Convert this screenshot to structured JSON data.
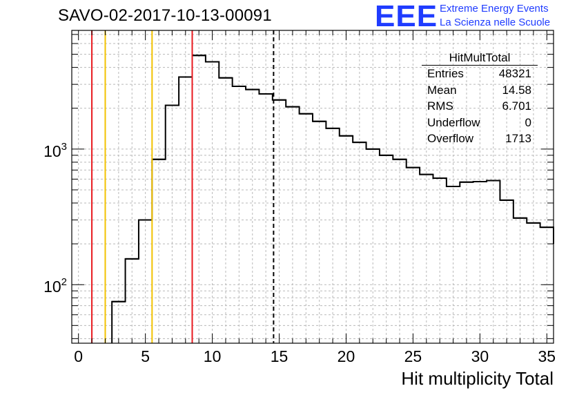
{
  "header": {
    "title": "SAVO-02-2017-10-13-00091"
  },
  "logo": {
    "mark": "EEE",
    "line1": "Extreme Energy Events",
    "line2": "La Scienza nelle Scuole",
    "color": "#1f3cff"
  },
  "stats_box": {
    "title": "HitMultTotal",
    "rows": [
      {
        "label": "Entries",
        "value": "48321"
      },
      {
        "label": "Mean",
        "value": "14.58"
      },
      {
        "label": "RMS",
        "value": "6.701"
      },
      {
        "label": "Underflow",
        "value": "0"
      },
      {
        "label": "Overflow",
        "value": "1713"
      }
    ]
  },
  "chart_data": {
    "type": "histogram",
    "xlabel": "Hit multiplicity Total",
    "ylabel": "",
    "xlim": [
      -0.5,
      35.5
    ],
    "ylim": [
      37,
      7500
    ],
    "yscale": "log",
    "grid": true,
    "bin_width": 1,
    "bins": [
      {
        "x": 0,
        "y": 0
      },
      {
        "x": 1,
        "y": 0
      },
      {
        "x": 2,
        "y": 0
      },
      {
        "x": 3,
        "y": 75
      },
      {
        "x": 4,
        "y": 155
      },
      {
        "x": 5,
        "y": 300
      },
      {
        "x": 6,
        "y": 840
      },
      {
        "x": 7,
        "y": 2100
      },
      {
        "x": 8,
        "y": 3400
      },
      {
        "x": 9,
        "y": 4900
      },
      {
        "x": 10,
        "y": 4400
      },
      {
        "x": 11,
        "y": 3350
      },
      {
        "x": 12,
        "y": 2900
      },
      {
        "x": 13,
        "y": 2750
      },
      {
        "x": 14,
        "y": 2550
      },
      {
        "x": 15,
        "y": 2300
      },
      {
        "x": 16,
        "y": 2050
      },
      {
        "x": 17,
        "y": 1820
      },
      {
        "x": 18,
        "y": 1600
      },
      {
        "x": 19,
        "y": 1420
      },
      {
        "x": 20,
        "y": 1250
      },
      {
        "x": 21,
        "y": 1120
      },
      {
        "x": 22,
        "y": 1000
      },
      {
        "x": 23,
        "y": 900
      },
      {
        "x": 24,
        "y": 840
      },
      {
        "x": 25,
        "y": 730
      },
      {
        "x": 26,
        "y": 650
      },
      {
        "x": 27,
        "y": 610
      },
      {
        "x": 28,
        "y": 530
      },
      {
        "x": 29,
        "y": 570
      },
      {
        "x": 30,
        "y": 575
      },
      {
        "x": 31,
        "y": 585
      },
      {
        "x": 32,
        "y": 420
      },
      {
        "x": 33,
        "y": 310
      },
      {
        "x": 34,
        "y": 285
      },
      {
        "x": 35,
        "y": 265
      },
      {
        "x": 36,
        "y": 200
      }
    ],
    "x_ticks": [
      0,
      5,
      10,
      15,
      20,
      25,
      30,
      35
    ],
    "y_ticks": [
      {
        "value": 100,
        "base": "10",
        "exp": "2"
      },
      {
        "value": 1000,
        "base": "10",
        "exp": "3"
      }
    ],
    "vertical_lines": [
      {
        "x": 1,
        "color": "#e8181e",
        "style": "solid"
      },
      {
        "x": 2,
        "color": "#f2c200",
        "style": "solid"
      },
      {
        "x": 5.5,
        "color": "#f2c200",
        "style": "solid"
      },
      {
        "x": 8.5,
        "color": "#e8181e",
        "style": "solid"
      },
      {
        "x": 14.58,
        "color": "#000000",
        "style": "dashed"
      }
    ]
  }
}
